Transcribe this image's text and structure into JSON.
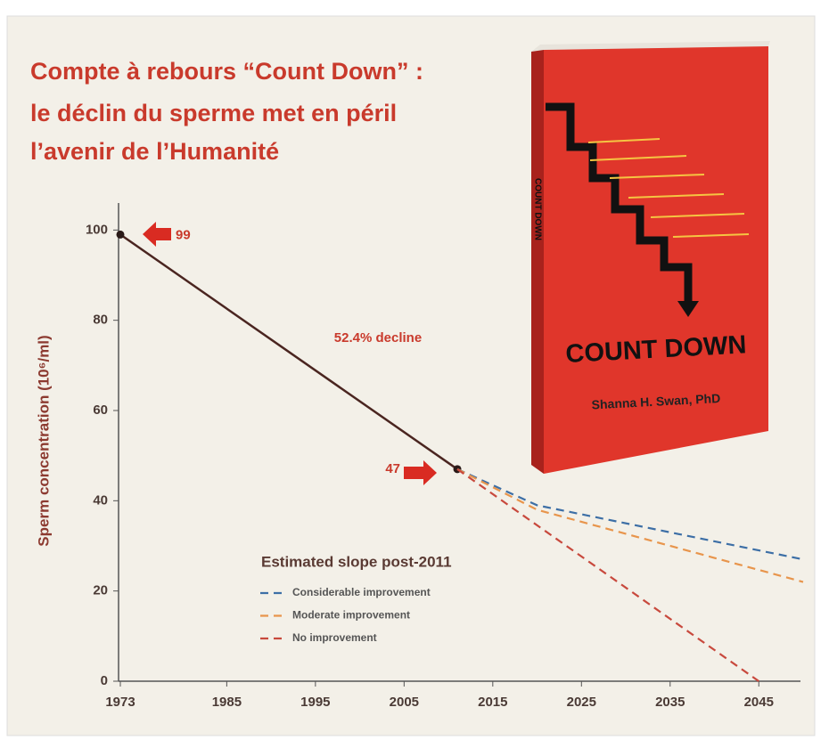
{
  "chart_data": {
    "type": "line",
    "title": [
      "Compte à rebours “Count Down” :",
      "le déclin du sperme met en péril",
      "l’avenir de l’Humanité"
    ],
    "y_label": "Sperm concentration (10⁶/ml)",
    "annotations": [
      "52.4% decline"
    ],
    "legend_title": "Estimated slope post-2011",
    "legend": "lower left",
    "xlim": [
      1973,
      2050
    ],
    "xticks": [
      1973,
      1985,
      1995,
      2005,
      2015,
      2025,
      2035,
      2045
    ],
    "ylim": [
      0,
      105
    ],
    "yticks": [
      0,
      20,
      40,
      60,
      80,
      100
    ],
    "grid": false,
    "series": [
      {
        "color": "#4a2520",
        "dash": false,
        "x": [
          1973,
          2011
        ],
        "values": [
          99,
          47
        ]
      },
      {
        "name": "Considerable improvement",
        "color": "#3d6fa6",
        "dash": true,
        "x": [
          2011,
          2020,
          2050
        ],
        "values": [
          47,
          39,
          27
        ]
      },
      {
        "name": "Moderate improvement",
        "color": "#e8954c",
        "dash": true,
        "x": [
          2011,
          2020,
          2050
        ],
        "values": [
          47,
          38,
          22
        ]
      },
      {
        "name": "No improvement",
        "color": "#c8493d",
        "dash": true,
        "x": [
          2011,
          2045
        ],
        "values": [
          47,
          0
        ]
      }
    ]
  },
  "book": {
    "title": "COUNT DOWN",
    "author": "Shanna H. Swan, PhD"
  }
}
